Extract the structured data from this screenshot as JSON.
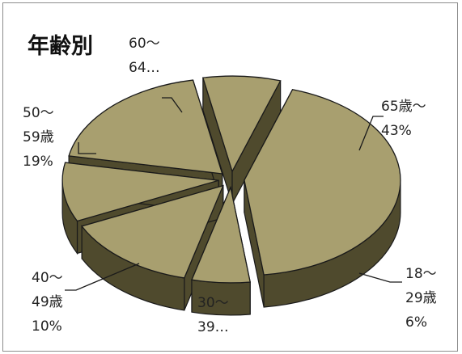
{
  "chart_data": {
    "type": "pie",
    "style": "3d-exploded",
    "title": "年齢別",
    "slices": [
      {
        "label_lines": [
          "65歳～",
          "43%"
        ],
        "value": 43
      },
      {
        "label_lines": [
          "18～",
          "29歳",
          "6%"
        ],
        "value": 6
      },
      {
        "label_lines": [
          "30～",
          "39…"
        ],
        "value": 14
      },
      {
        "label_lines": [
          "40～",
          "49歳",
          "10%"
        ],
        "value": 10
      },
      {
        "label_lines": [
          "50～",
          "59歳",
          "19%"
        ],
        "value": 19
      },
      {
        "label_lines": [
          "60～",
          "64…"
        ],
        "value": 8
      }
    ],
    "colors": {
      "top": "#a89f6f",
      "side": "#4f4a2d",
      "edge": "#1a1a1a"
    }
  }
}
